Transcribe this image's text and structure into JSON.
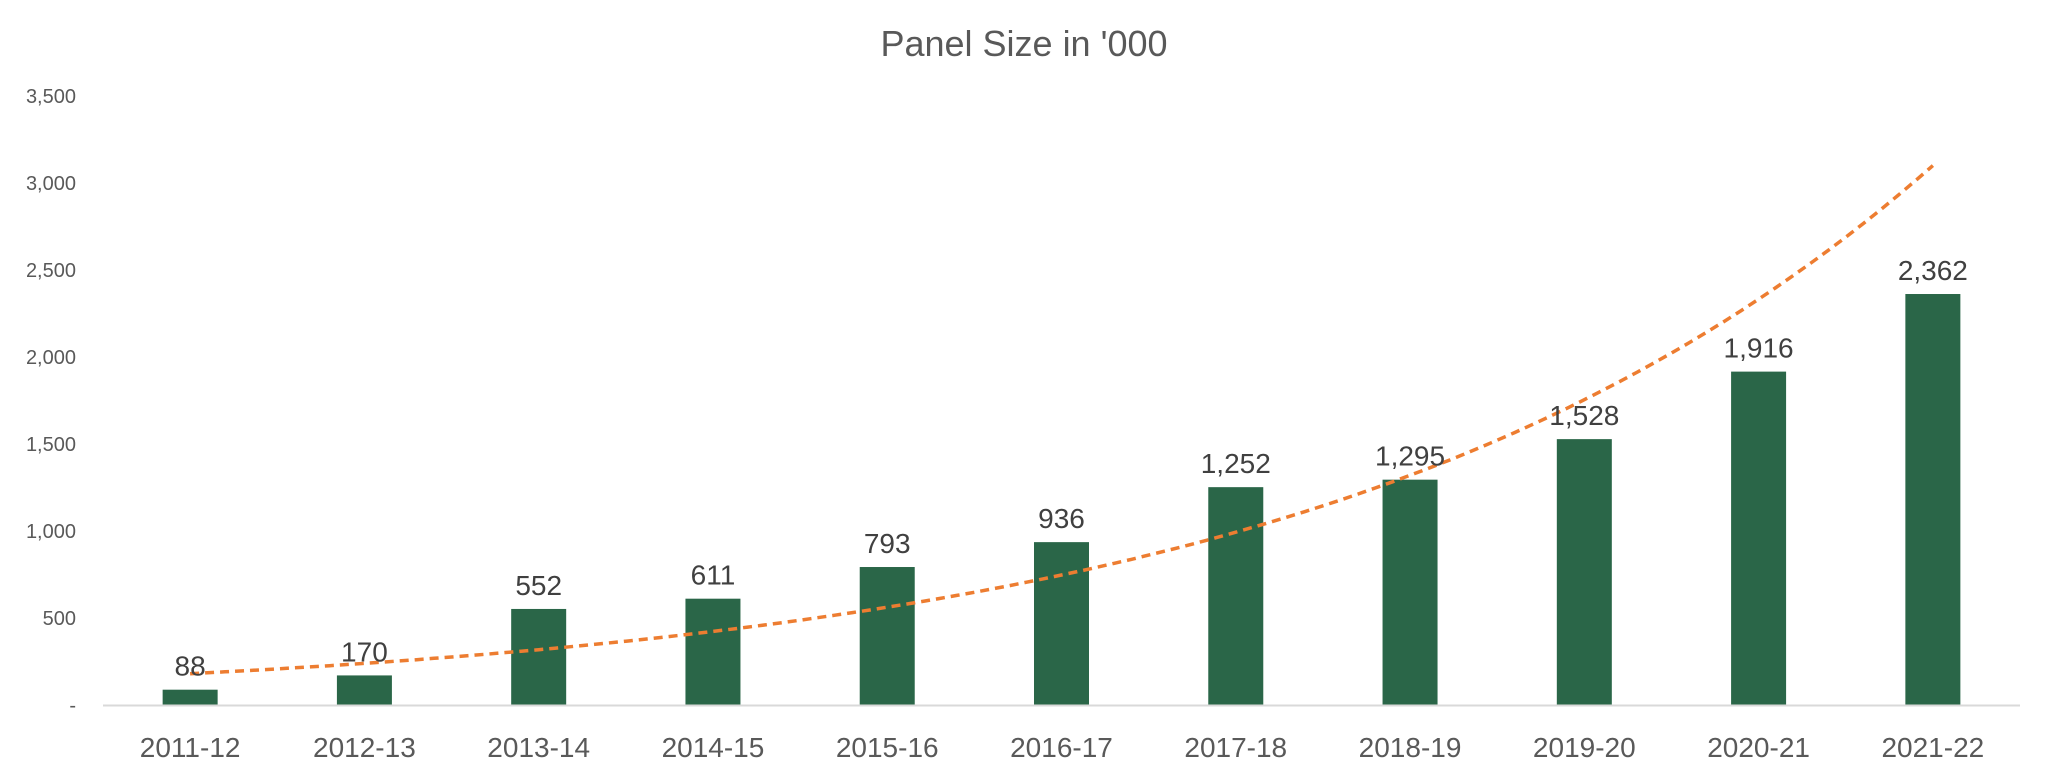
{
  "chart_data": {
    "type": "bar",
    "title": "Panel Size in '000",
    "categories": [
      "2011-12",
      "2012-13",
      "2013-14",
      "2014-15",
      "2015-16",
      "2016-17",
      "2017-18",
      "2018-19",
      "2019-20",
      "2020-21",
      "2021-22"
    ],
    "values": [
      88,
      170,
      552,
      611,
      793,
      936,
      1252,
      1295,
      1528,
      1916,
      2362
    ],
    "data_labels": [
      "88",
      "170",
      "552",
      "611",
      "793",
      "936",
      "1,252",
      "1,295",
      "1,528",
      "1,916",
      "2,362"
    ],
    "ylim": [
      0,
      3500
    ],
    "yticks": [
      0,
      500,
      1000,
      1500,
      2000,
      2500,
      3000,
      3500
    ],
    "ytick_labels": [
      "-",
      "500",
      "1,000",
      "1,500",
      "2,000",
      "2,500",
      "3,000",
      "3,500"
    ],
    "grid": false,
    "colors": {
      "bar": "#2a6648",
      "trendline": "#ed7d31"
    },
    "trendline": {
      "type": "exponential",
      "style": "dashed",
      "x_range": [
        "2011-12",
        "2021-22"
      ],
      "start_value": 180,
      "end_value": 3100
    }
  }
}
